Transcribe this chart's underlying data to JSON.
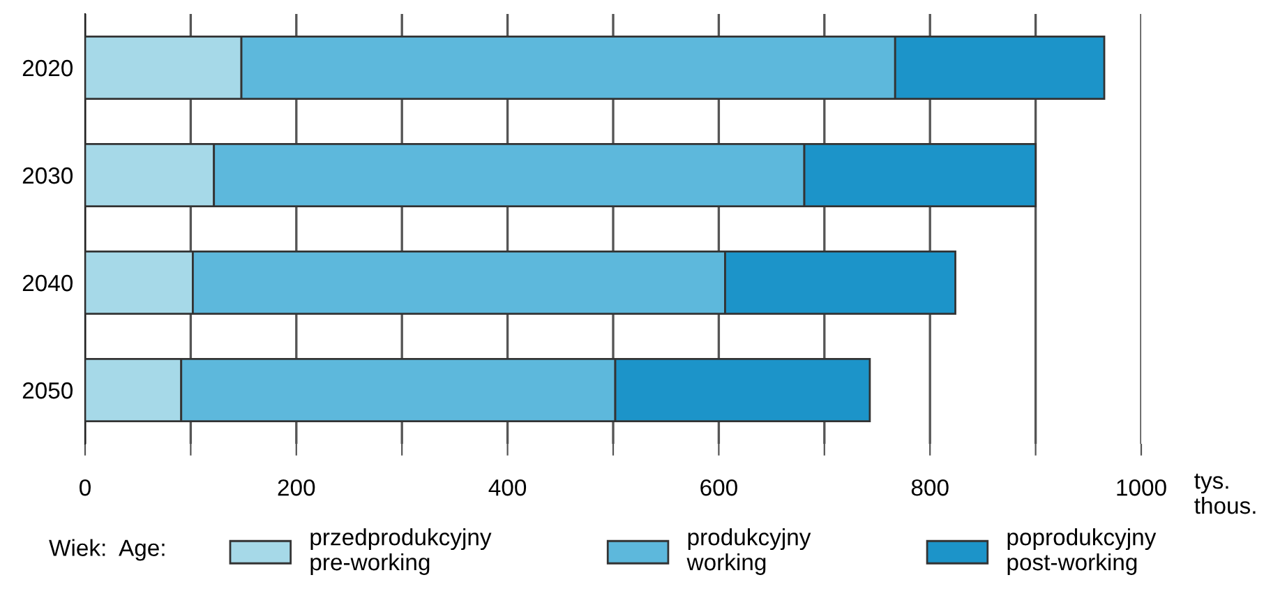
{
  "chart_data": {
    "type": "bar",
    "orientation": "horizontal",
    "stacked": true,
    "categories": [
      "2020",
      "2030",
      "2040",
      "2050"
    ],
    "series": [
      {
        "name": "przedprodukcyjny\npre-working",
        "color": "#a6d9e8",
        "values": [
          148,
          122,
          102,
          91
        ]
      },
      {
        "name": "produkcyjny\nworking",
        "color": "#5db8dc",
        "values": [
          619,
          559,
          504,
          411
        ]
      },
      {
        "name": "poprodukcyjny\npost-working",
        "color": "#1c94c9",
        "values": [
          198,
          219,
          218,
          241
        ]
      }
    ],
    "xlabel": "tys.\nthous.",
    "legend_title": "Wiek:  Age:",
    "xlim": [
      0,
      1000
    ],
    "xticks": [
      0,
      {
        "value": 100,
        "label": null
      },
      200,
      {
        "value": 300,
        "label": null
      },
      400,
      {
        "value": 500,
        "label": null
      },
      600,
      {
        "value": 700,
        "label": null
      },
      800,
      {
        "value": 900,
        "label": null
      },
      1000
    ],
    "grid": "x",
    "legend": "bottom"
  }
}
